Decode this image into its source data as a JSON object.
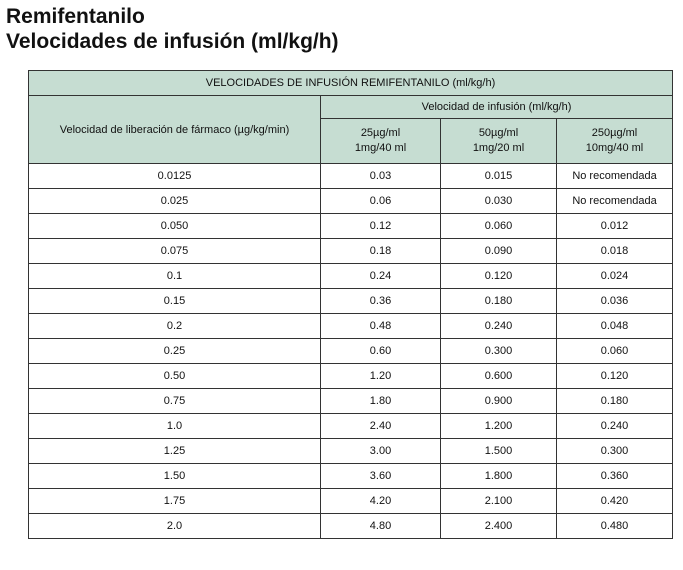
{
  "heading": {
    "line1": "Remifentanilo",
    "line2": "Velocidades de infusión (ml/kg/h)"
  },
  "table": {
    "title": "VELOCIDADES DE INFUSIÓN REMIFENTANILO (ml/kg/h)",
    "row_header": "Velocidad de liberación de fármaco (µg/kg/min)",
    "group_header": "Velocidad de infusión (ml/kg/h)",
    "columns": [
      {
        "line1": "25µg/ml",
        "line2": "1mg/40 ml"
      },
      {
        "line1": "50µg/ml",
        "line2": "1mg/20 ml"
      },
      {
        "line1": "250µg/ml",
        "line2": "10mg/40 ml"
      }
    ],
    "rows": [
      [
        "0.0125",
        "0.03",
        "0.015",
        "No recomendada"
      ],
      [
        "0.025",
        "0.06",
        "0.030",
        "No recomendada"
      ],
      [
        "0.050",
        "0.12",
        "0.060",
        "0.012"
      ],
      [
        "0.075",
        "0.18",
        "0.090",
        "0.018"
      ],
      [
        "0.1",
        "0.24",
        "0.120",
        "0.024"
      ],
      [
        "0.15",
        "0.36",
        "0.180",
        "0.036"
      ],
      [
        "0.2",
        "0.48",
        "0.240",
        "0.048"
      ],
      [
        "0.25",
        "0.60",
        "0.300",
        "0.060"
      ],
      [
        "0.50",
        "1.20",
        "0.600",
        "0.120"
      ],
      [
        "0.75",
        "1.80",
        "0.900",
        "0.180"
      ],
      [
        "1.0",
        "2.40",
        "1.200",
        "0.240"
      ],
      [
        "1.25",
        "3.00",
        "1.500",
        "0.300"
      ],
      [
        "1.50",
        "3.60",
        "1.800",
        "0.360"
      ],
      [
        "1.75",
        "4.20",
        "2.100",
        "0.420"
      ],
      [
        "2.0",
        "4.80",
        "2.400",
        "0.480"
      ]
    ]
  },
  "colors": {
    "header_fill": "#c6ddd2",
    "border": "#333333"
  }
}
